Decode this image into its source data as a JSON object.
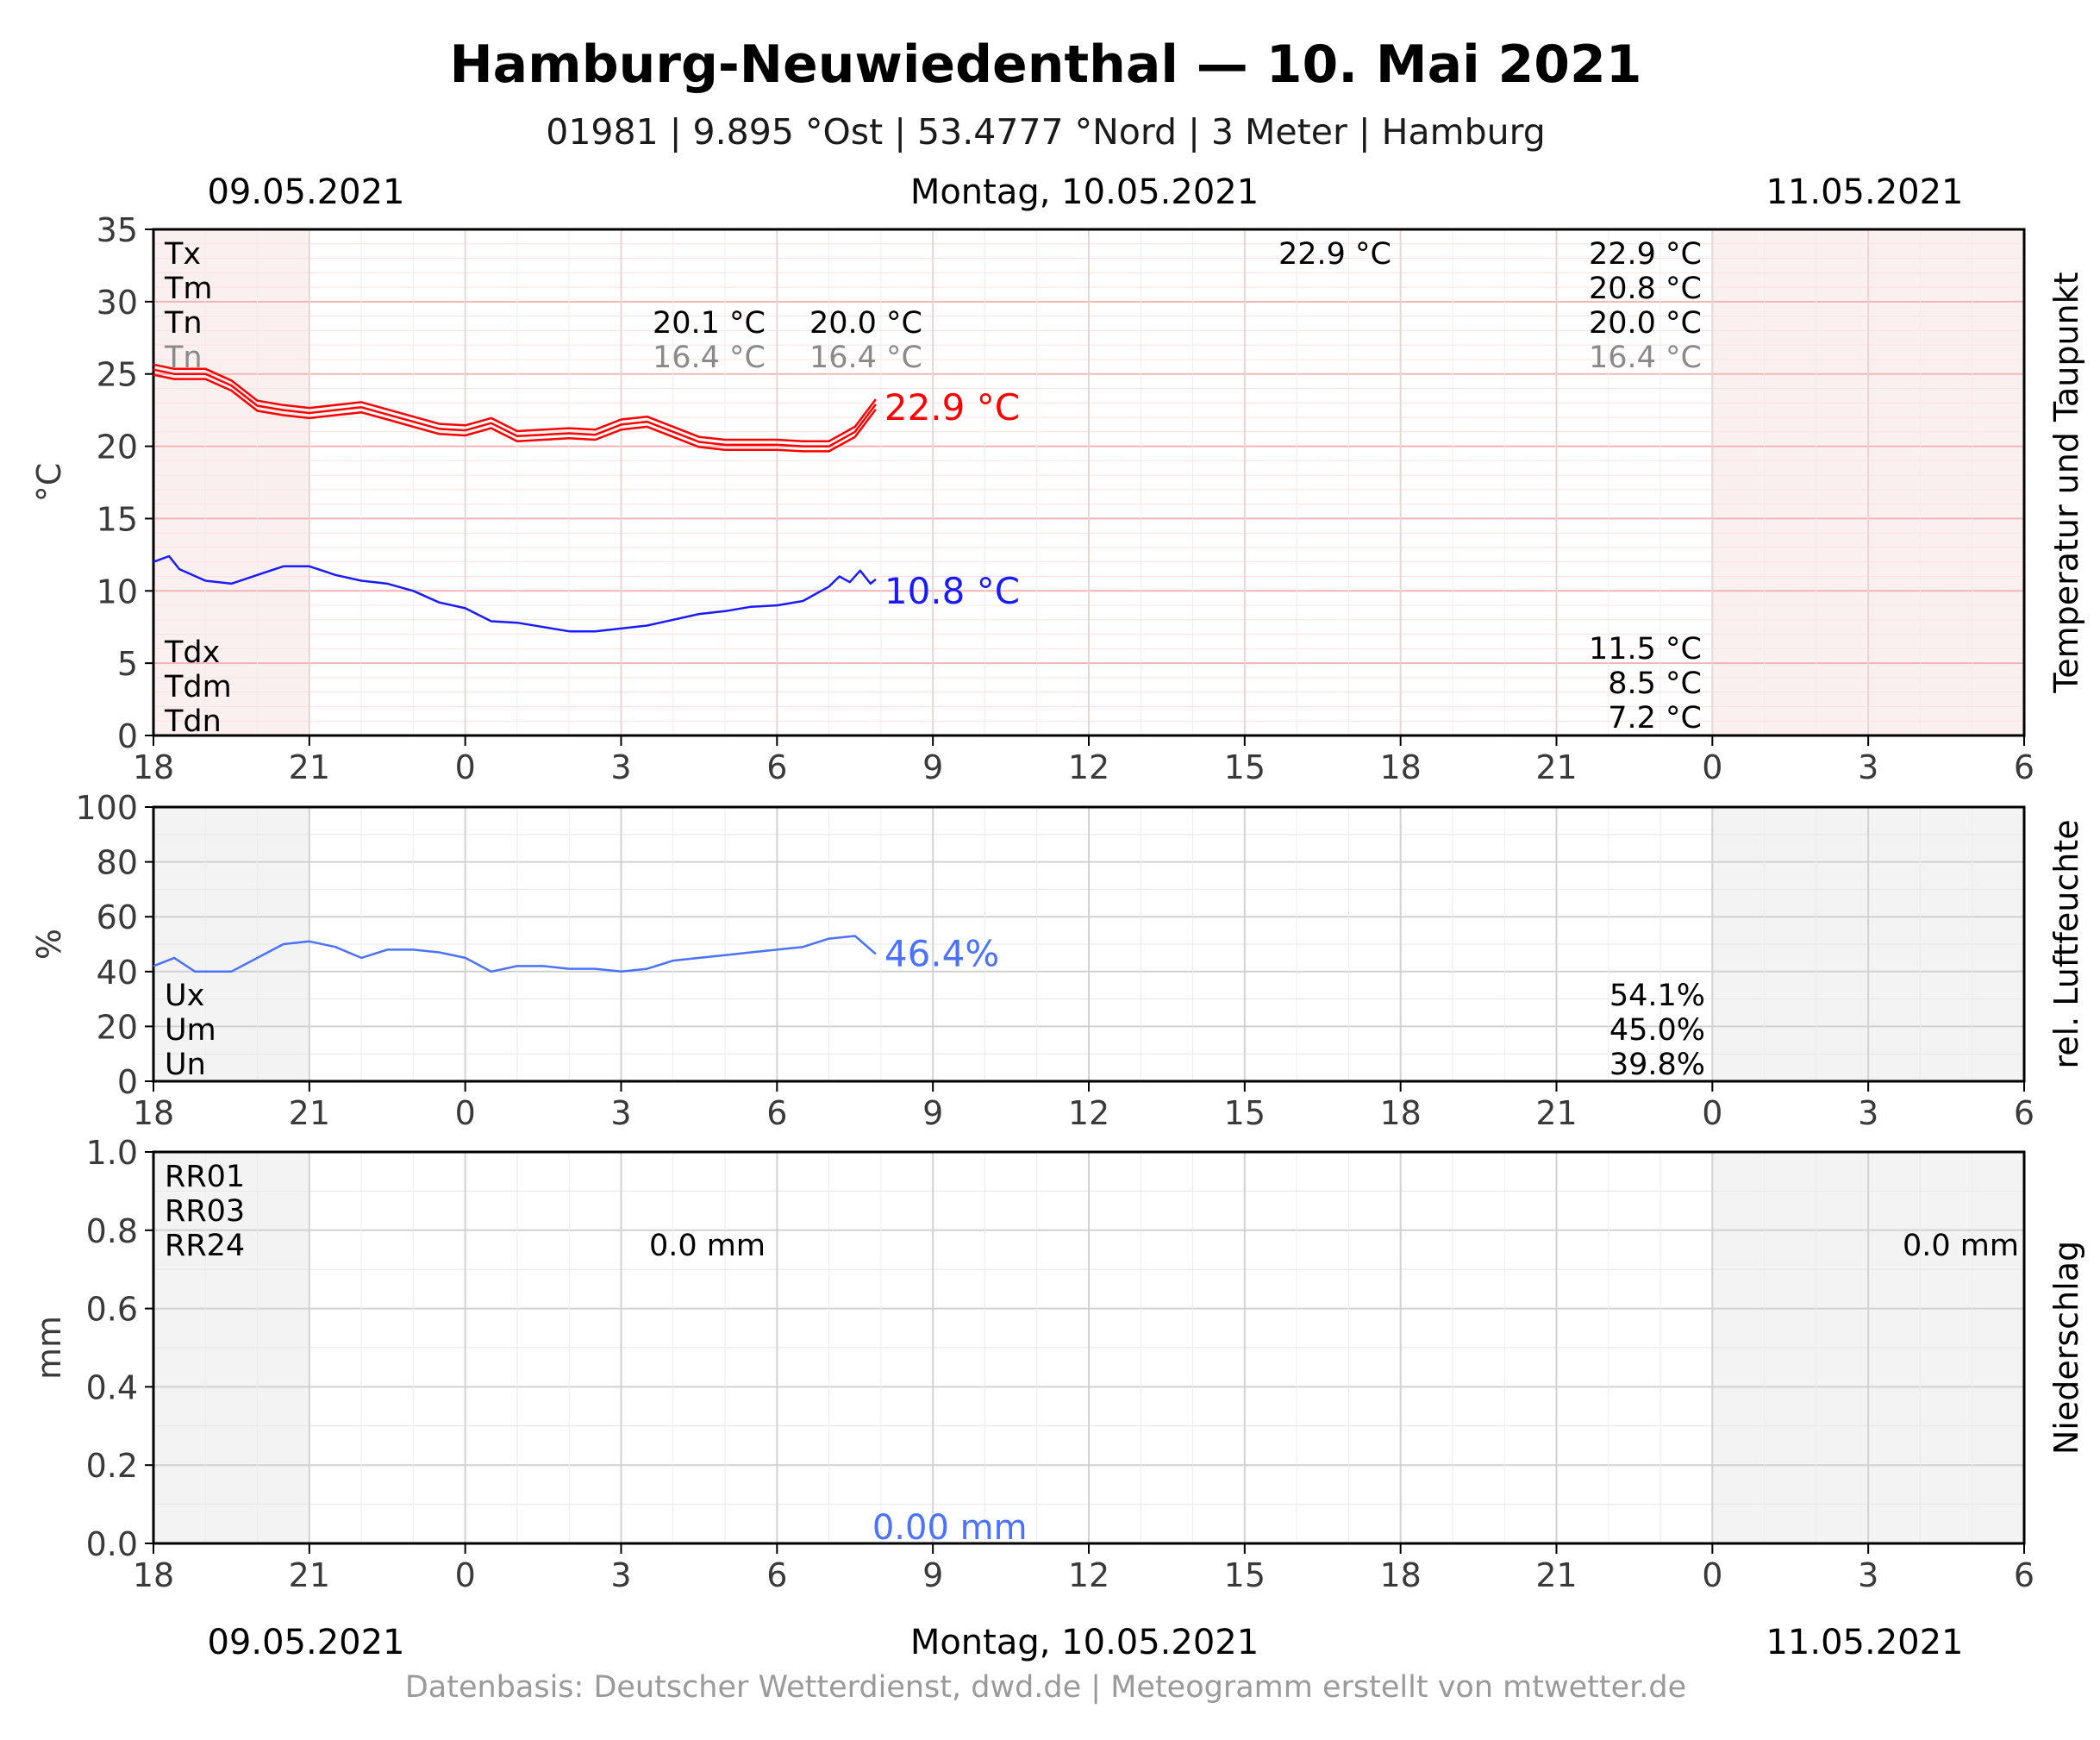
{
  "header": {
    "title": "Hamburg-Neuwiedenthal  —  10. Mai 2021",
    "subtitle": "01981  |  9.895 °Ost  |  53.4777 °Nord  |  3 Meter  |  Hamburg"
  },
  "dates": {
    "left": "09.05.2021",
    "center": "Montag, 10.05.2021",
    "right": "11.05.2021"
  },
  "footer": "Datenbasis: Deutscher Wetterdienst, dwd.de  |  Meteogramm erstellt von mtwetter.de",
  "x_ticks": [
    "18",
    "21",
    "0",
    "3",
    "6",
    "9",
    "12",
    "15",
    "18",
    "21",
    "0",
    "3",
    "6"
  ],
  "colors": {
    "temperature": "#ff0000",
    "dewpoint": "#1a1aff",
    "humidity": "#4a72ff",
    "precip": "#4a72ff",
    "grid_temp": "#f2b8b8",
    "grid": "#d0d0d0",
    "night_shade": "#f3f3f3"
  },
  "chart_data": [
    {
      "type": "line",
      "name": "temperature",
      "ylabel": "°C",
      "side_label": "Temperatur und Taupunkt",
      "ylim": [
        0,
        35
      ],
      "yticks": [
        "0",
        "5",
        "10",
        "15",
        "20",
        "25",
        "30",
        "35"
      ],
      "x_range_hours": [
        -6,
        30
      ],
      "series": [
        {
          "key": "T",
          "color": "#ff0000",
          "last_label": "22.9 °C",
          "x": [
            -6,
            -5.6,
            -5,
            -4.5,
            -4,
            -3.5,
            -3,
            -2.5,
            -2,
            -1.5,
            -1,
            -0.5,
            0,
            0.5,
            1,
            1.5,
            2,
            2.5,
            3,
            3.5,
            4,
            4.5,
            5,
            5.5,
            6,
            6.5,
            7,
            7.5,
            7.9
          ],
          "values": [
            25.3,
            25.0,
            25.0,
            24.2,
            22.8,
            22.5,
            22.3,
            22.5,
            22.7,
            22.2,
            21.7,
            21.2,
            21.1,
            21.6,
            20.7,
            20.8,
            20.9,
            20.8,
            21.5,
            21.7,
            21.0,
            20.3,
            20.1,
            20.1,
            20.1,
            20.0,
            20.0,
            21.0,
            22.9
          ]
        },
        {
          "key": "Td",
          "color": "#1a1aff",
          "last_label": "10.8 °C",
          "x": [
            -6,
            -5.7,
            -5.5,
            -5,
            -4.5,
            -4,
            -3.5,
            -3,
            -2.5,
            -2,
            -1.5,
            -1,
            -0.5,
            0,
            0.5,
            1,
            1.5,
            2,
            2.5,
            3,
            3.5,
            4,
            4.5,
            5,
            5.5,
            6,
            6.5,
            7,
            7.2,
            7.4,
            7.6,
            7.8,
            7.9
          ],
          "values": [
            12.0,
            12.4,
            11.5,
            10.7,
            10.5,
            11.1,
            11.7,
            11.7,
            11.1,
            10.7,
            10.5,
            10.0,
            9.2,
            8.8,
            7.9,
            7.8,
            7.5,
            7.2,
            7.2,
            7.4,
            7.6,
            8.0,
            8.4,
            8.6,
            8.9,
            9.0,
            9.3,
            10.3,
            11.0,
            10.6,
            11.4,
            10.5,
            10.8
          ]
        }
      ],
      "stats_left": [
        "Tx",
        "Tm",
        "Tn",
        "Tn"
      ],
      "stats_mid": {
        "tx_day": "22.9 °C",
        "tn_a": "20.1 °C",
        "tn_b": "20.0 °C",
        "dn_a": "16.4 °C",
        "dn_b": "16.4 °C"
      },
      "stats_right": [
        "22.9 °C",
        "20.8 °C",
        "20.0 °C",
        "16.4 °C"
      ],
      "dew_left": [
        "Tdx",
        "Tdm",
        "Tdn"
      ],
      "dew_right": [
        "11.5 °C",
        "8.5 °C",
        "7.2 °C"
      ]
    },
    {
      "type": "line",
      "name": "humidity",
      "ylabel": "%",
      "side_label": "rel. Luftfeuchte",
      "ylim": [
        0,
        100
      ],
      "yticks": [
        "0",
        "20",
        "40",
        "60",
        "80",
        "100"
      ],
      "x_range_hours": [
        -6,
        30
      ],
      "series": [
        {
          "key": "U",
          "color": "#4a72ff",
          "last_label": "46.4%",
          "x": [
            -6,
            -5.6,
            -5.2,
            -4.5,
            -4,
            -3.5,
            -3,
            -2.5,
            -2,
            -1.5,
            -1,
            -0.5,
            0,
            0.5,
            1,
            1.5,
            2,
            2.5,
            3,
            3.5,
            4,
            4.5,
            5,
            5.5,
            6,
            6.5,
            7,
            7.5,
            7.9
          ],
          "values": [
            42,
            45,
            40,
            40,
            45,
            50,
            51,
            49,
            45,
            48,
            48,
            47,
            45,
            40,
            42,
            42,
            41,
            41,
            40,
            41,
            44,
            45,
            46,
            47,
            48,
            49,
            52,
            53,
            46.4
          ]
        }
      ],
      "stats_left": [
        "Ux",
        "Um",
        "Un"
      ],
      "stats_right": [
        "54.1%",
        "45.0%",
        "39.8%"
      ]
    },
    {
      "type": "bar",
      "name": "precipitation",
      "ylabel": "mm",
      "side_label": "Niederschlag",
      "ylim": [
        0,
        1.0
      ],
      "yticks": [
        "0.0",
        "0.2",
        "0.4",
        "0.6",
        "0.8",
        "1.0"
      ],
      "x_range_hours": [
        -6,
        30
      ],
      "values": [],
      "last_label": "0.00 mm",
      "stats_left": [
        "RR01",
        "RR03",
        "RR24"
      ],
      "stats_mid": "0.0 mm",
      "stats_right": "0.0 mm"
    }
  ]
}
